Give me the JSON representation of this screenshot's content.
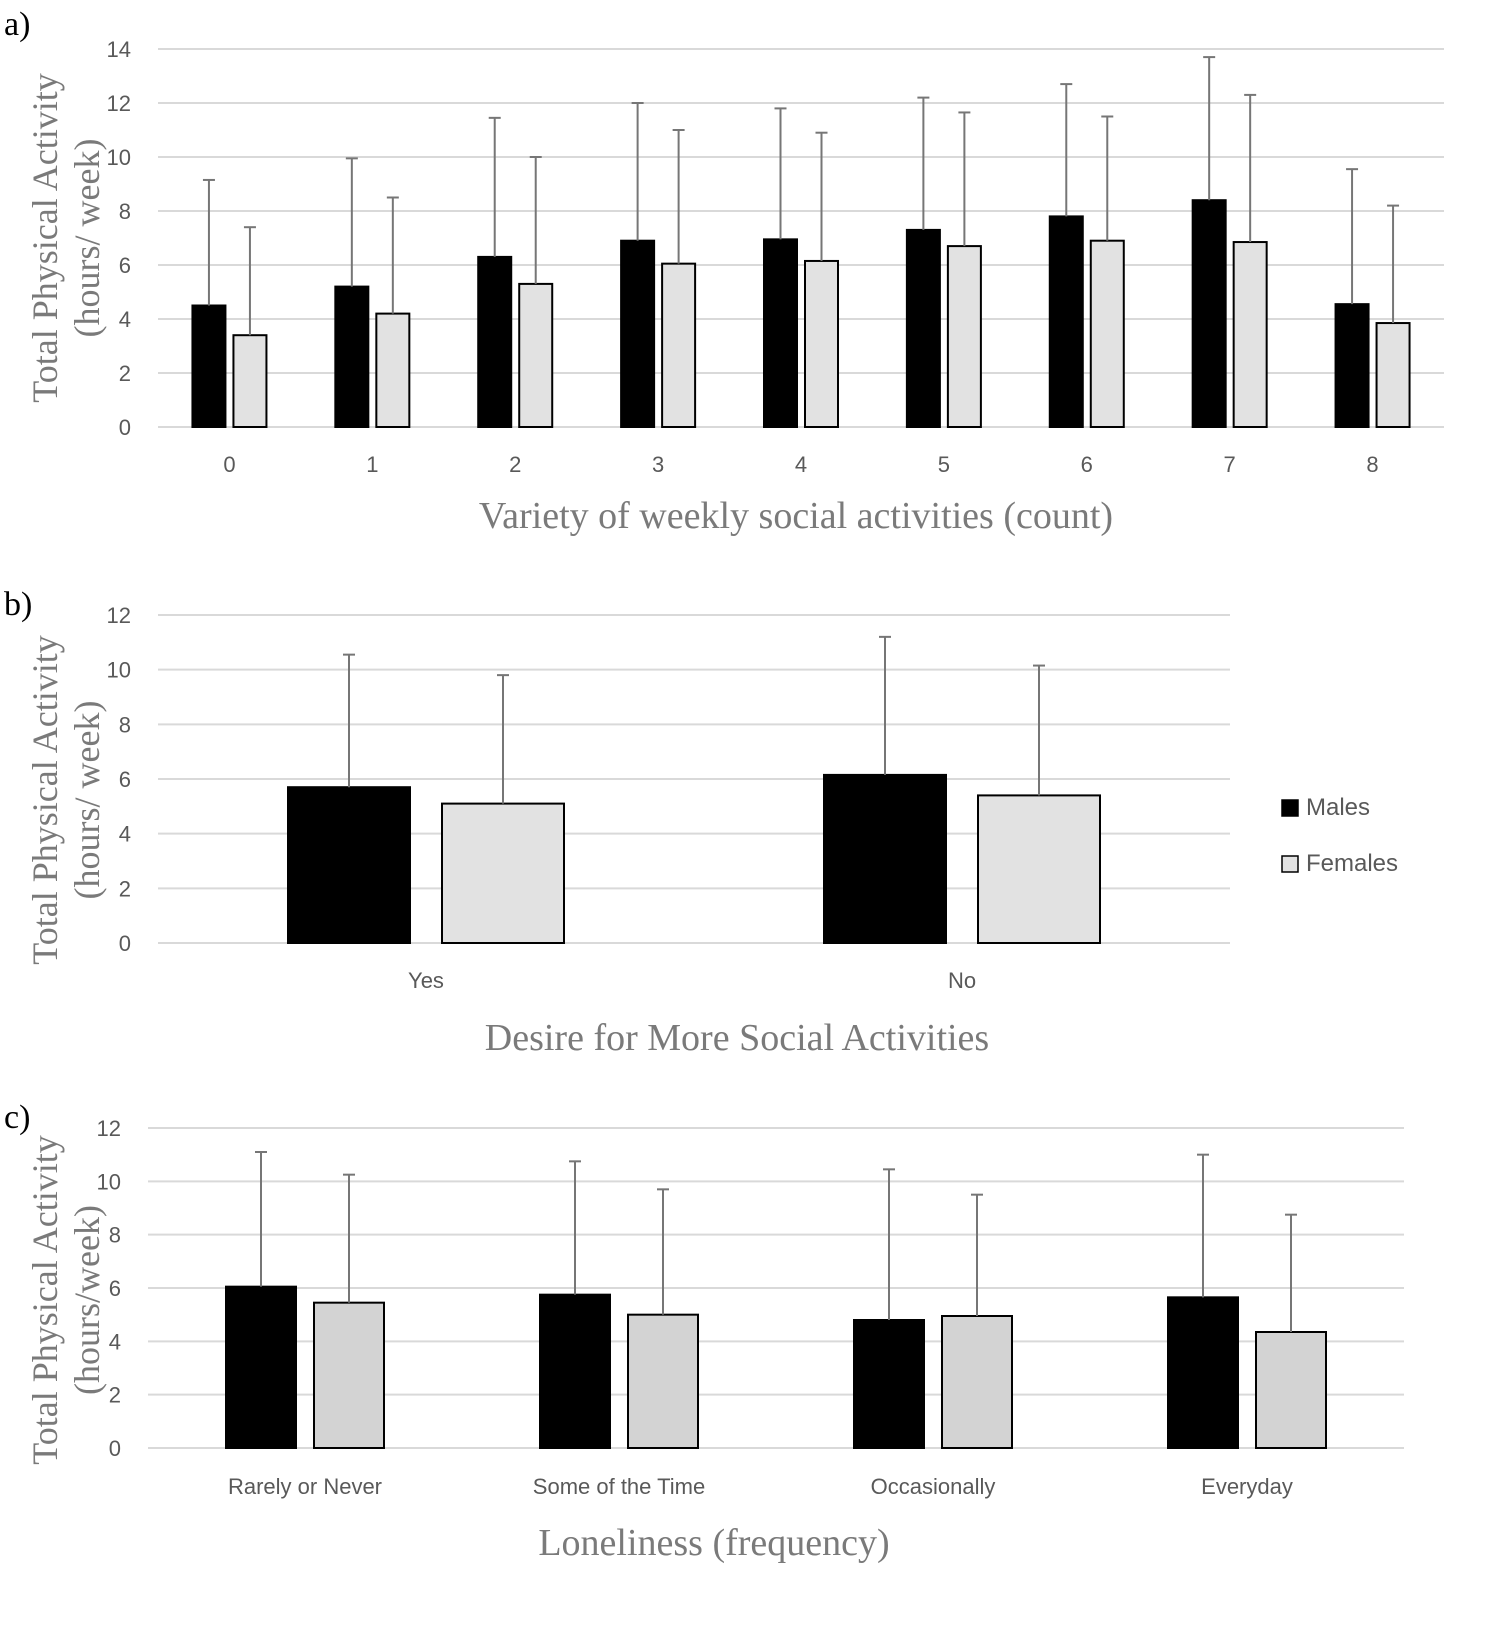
{
  "figure": {
    "colors": {
      "male": "#000000",
      "female_a": "#e2e2e2",
      "female_b": "#e2e2e2",
      "female_c": "#d3d3d3",
      "gridline": "#d9d9d9",
      "errorbar": "#767676",
      "tick_text": "#595959",
      "title_text": "#7a7a7a",
      "panel_label": "#000000"
    },
    "legend": {
      "males": "Males",
      "females": "Females"
    }
  },
  "chart_data": [
    {
      "panel_label": "a)",
      "type": "bar",
      "title": "",
      "xlabel": "Variety of weekly social activities (count)",
      "ylabel_line1": "Total Physical Activity",
      "ylabel_line2": "(hours/ week)",
      "ylim": [
        0,
        14
      ],
      "yticks": [
        0,
        2,
        4,
        6,
        8,
        10,
        12,
        14
      ],
      "ytick_labels": [
        "0",
        "2",
        "4",
        "6",
        "8",
        "10",
        "12",
        "14"
      ],
      "grid": true,
      "categories": [
        "0",
        "1",
        "2",
        "3",
        "4",
        "5",
        "6",
        "7",
        "8"
      ],
      "series": [
        {
          "name": "Males",
          "values": [
            4.5,
            5.2,
            6.3,
            6.9,
            6.95,
            7.3,
            7.8,
            8.4,
            4.55
          ],
          "error_upper": [
            9.15,
            9.95,
            11.45,
            12.0,
            11.8,
            12.2,
            12.7,
            13.7,
            9.55
          ]
        },
        {
          "name": "Females",
          "values": [
            3.4,
            4.2,
            5.3,
            6.05,
            6.15,
            6.7,
            6.9,
            6.85,
            3.85
          ],
          "error_upper": [
            7.4,
            8.5,
            10.0,
            11.0,
            10.9,
            11.65,
            11.5,
            12.3,
            8.2
          ]
        }
      ]
    },
    {
      "panel_label": "b)",
      "type": "bar",
      "title": "",
      "xlabel": "Desire for More Social Activities",
      "ylabel_line1": "Total Physical Activity",
      "ylabel_line2": "(hours/ week)",
      "ylim": [
        0,
        12
      ],
      "yticks": [
        0,
        2,
        4,
        6,
        8,
        10,
        12
      ],
      "ytick_labels": [
        "0",
        "2",
        "4",
        "6",
        "8",
        "10",
        "12"
      ],
      "grid": true,
      "legend_position": "right",
      "categories": [
        "Yes",
        "No"
      ],
      "series": [
        {
          "name": "Males",
          "values": [
            5.7,
            6.15
          ],
          "error_upper": [
            10.55,
            11.2
          ]
        },
        {
          "name": "Females",
          "values": [
            5.1,
            5.4
          ],
          "error_upper": [
            9.8,
            10.15
          ]
        }
      ]
    },
    {
      "panel_label": "c)",
      "type": "bar",
      "title": "",
      "xlabel": "Loneliness (frequency)",
      "ylabel_line1": "Total Physical Activity",
      "ylabel_line2": "(hours/week)",
      "ylim": [
        0,
        12
      ],
      "yticks": [
        0,
        2,
        4,
        6,
        8,
        10,
        12
      ],
      "ytick_labels": [
        "0",
        "2",
        "4",
        "6",
        "8",
        "10",
        "12"
      ],
      "grid": true,
      "categories": [
        "Rarely or Never",
        "Some of the Time",
        "Occasionally",
        "Everyday"
      ],
      "series": [
        {
          "name": "Males",
          "values": [
            6.05,
            5.75,
            4.8,
            5.65
          ],
          "error_upper": [
            11.1,
            10.75,
            10.45,
            11.0
          ]
        },
        {
          "name": "Females",
          "values": [
            5.45,
            5.0,
            4.95,
            4.35
          ],
          "error_upper": [
            10.25,
            9.7,
            9.5,
            8.75
          ]
        }
      ]
    }
  ]
}
